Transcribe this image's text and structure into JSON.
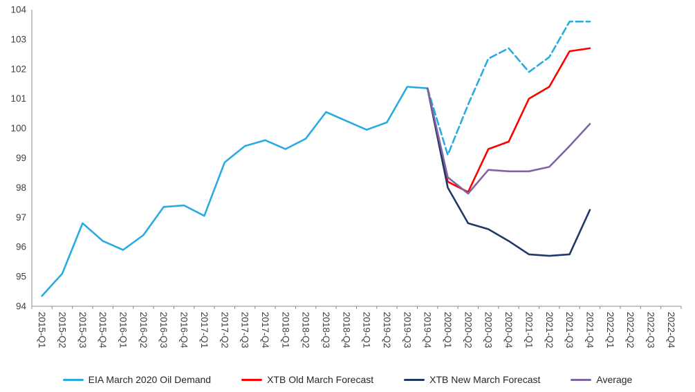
{
  "chart_data": {
    "type": "line",
    "title": "",
    "xlabel": "",
    "ylabel": "",
    "ylim": [
      94,
      104
    ],
    "yticks": [
      94,
      95,
      96,
      97,
      98,
      99,
      100,
      101,
      102,
      103,
      104
    ],
    "grid": false,
    "legend_position": "bottom",
    "categories": [
      "2015-Q1",
      "2015-Q2",
      "2015-Q3",
      "2015-Q4",
      "2016-Q1",
      "2016-Q2",
      "2016-Q3",
      "2016-Q4",
      "2017-Q1",
      "2017-Q2",
      "2017-Q3",
      "2017-Q4",
      "2018-Q1",
      "2018-Q2",
      "2018-Q3",
      "2018-Q4",
      "2019-Q1",
      "2019-Q2",
      "2019-Q3",
      "2019-Q4",
      "2020-Q1",
      "2020-Q2",
      "2020-Q3",
      "2020-Q4",
      "2021-Q1",
      "2021-Q2",
      "2021-Q3",
      "2021-Q4",
      "2022-Q1",
      "2022-Q2",
      "2022-Q3",
      "2022-Q4"
    ],
    "series": [
      {
        "name": "EIA March 2020 Oil Demand",
        "color": "#29ABE2",
        "style": "solid",
        "in_legend": true,
        "values": [
          94.35,
          95.1,
          96.8,
          96.2,
          95.9,
          96.4,
          97.35,
          97.4,
          97.05,
          98.85,
          99.4,
          99.6,
          99.3,
          99.65,
          100.55,
          100.25,
          99.95,
          100.2,
          101.4,
          101.35,
          null,
          null,
          null,
          null,
          null,
          null,
          null,
          null,
          null,
          null,
          null,
          null
        ]
      },
      {
        "name": "EIA March 2020 Oil Demand (dashed forecast segment)",
        "color": "#29ABE2",
        "style": "dashed",
        "in_legend": false,
        "values": [
          null,
          null,
          null,
          null,
          null,
          null,
          null,
          null,
          null,
          null,
          null,
          null,
          null,
          null,
          null,
          null,
          null,
          null,
          null,
          101.35,
          99.1,
          100.8,
          102.35,
          102.7,
          101.9,
          102.4,
          103.6,
          103.6,
          null,
          null,
          null,
          null
        ]
      },
      {
        "name": "XTB Old March Forecast",
        "color": "#FF0000",
        "style": "solid",
        "in_legend": true,
        "values": [
          null,
          null,
          null,
          null,
          null,
          null,
          null,
          null,
          null,
          null,
          null,
          null,
          null,
          null,
          null,
          null,
          null,
          null,
          null,
          101.35,
          98.2,
          97.85,
          99.3,
          99.55,
          101.0,
          101.4,
          102.6,
          102.7,
          null,
          null,
          null,
          null
        ]
      },
      {
        "name": "XTB New March Forecast",
        "color": "#1F3864",
        "style": "solid",
        "in_legend": true,
        "values": [
          null,
          null,
          null,
          null,
          null,
          null,
          null,
          null,
          null,
          null,
          null,
          null,
          null,
          null,
          null,
          null,
          null,
          null,
          null,
          101.35,
          98.0,
          96.8,
          96.6,
          96.2,
          95.75,
          95.7,
          95.75,
          97.25,
          null,
          null,
          null,
          null
        ]
      },
      {
        "name": "Average",
        "color": "#8064A2",
        "style": "solid",
        "in_legend": true,
        "values": [
          null,
          null,
          null,
          null,
          null,
          null,
          null,
          null,
          null,
          null,
          null,
          null,
          null,
          null,
          null,
          null,
          null,
          null,
          null,
          101.35,
          98.35,
          97.8,
          98.6,
          98.55,
          98.55,
          98.7,
          99.4,
          100.15,
          null,
          null,
          null,
          null
        ]
      }
    ],
    "legend": [
      {
        "label": "EIA March 2020 Oil Demand",
        "color": "#29ABE2"
      },
      {
        "label": "XTB Old March Forecast",
        "color": "#FF0000"
      },
      {
        "label": "XTB New March Forecast",
        "color": "#1F3864"
      },
      {
        "label": "Average",
        "color": "#8064A2"
      }
    ]
  }
}
